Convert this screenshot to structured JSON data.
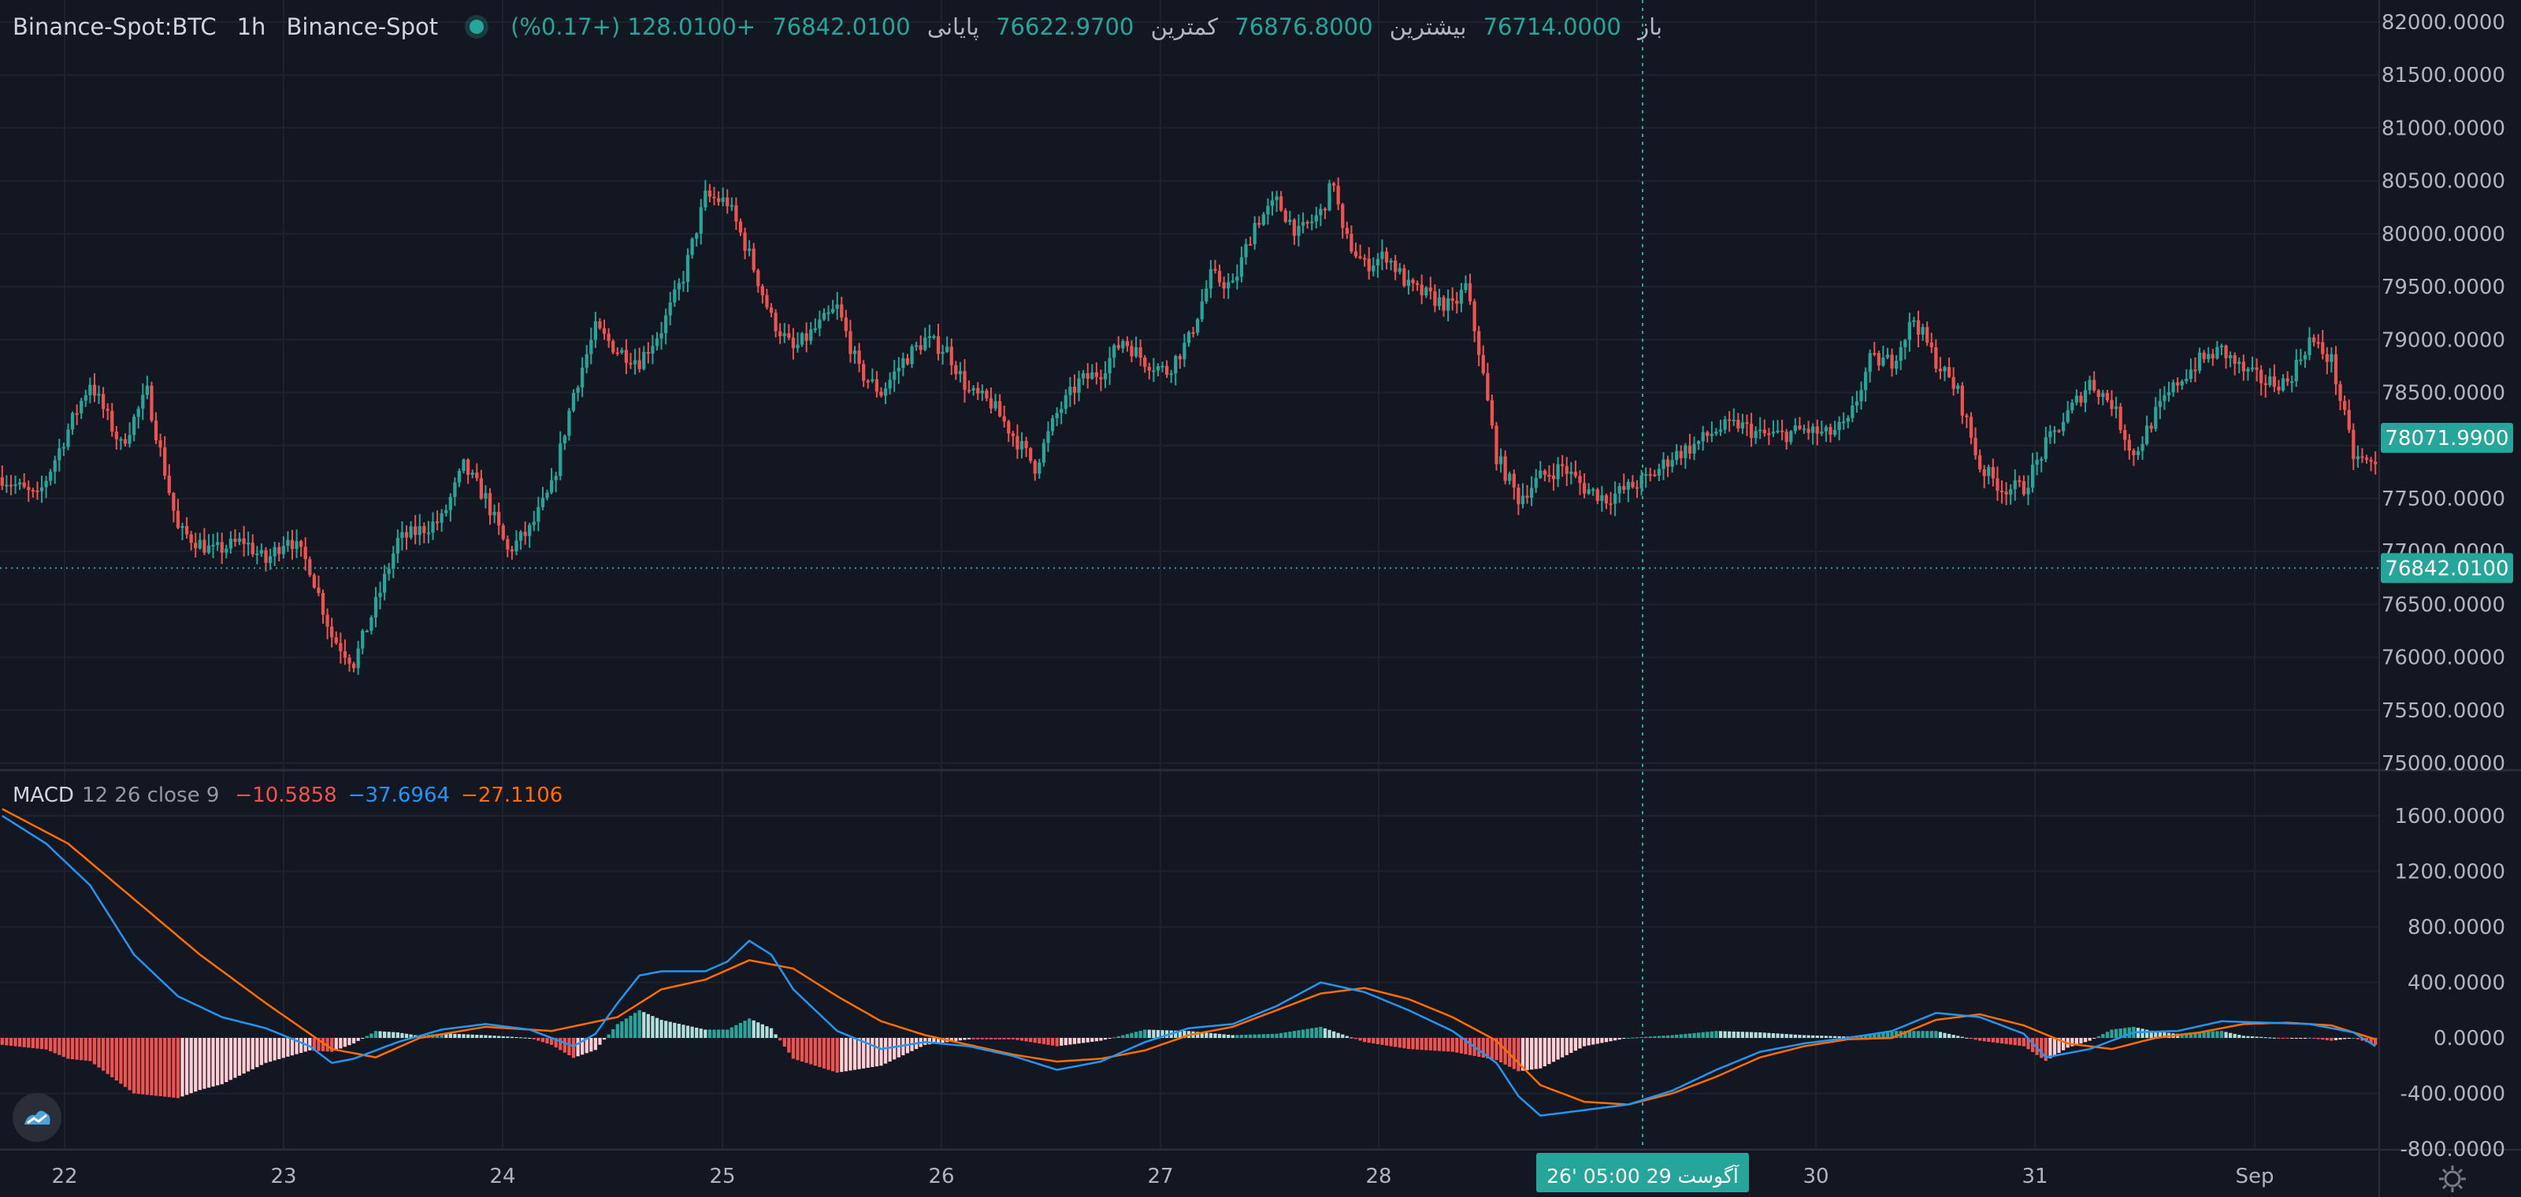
{
  "header": {
    "symbol": "Binance-Spot:BTC",
    "interval": "1h",
    "exchange": "Binance-Spot",
    "open_label": "باز",
    "open_value": "76714.0000",
    "high_label": "بیشترین",
    "high_value": "76876.8000",
    "low_label": "کمترین",
    "low_value": "76622.9700",
    "close_label": "پایانی",
    "close_value": "76842.0100",
    "change": "+128.0100 (+0.17%)"
  },
  "macd_legend": {
    "name": "MACD",
    "params": "12 26 close 9",
    "hist_value": "−10.5858",
    "macd_value": "−37.6964",
    "signal_value": "−27.1106"
  },
  "price_axis_labels": [
    "82000.0000",
    "81500.0000",
    "81000.0000",
    "80500.0000",
    "80000.0000",
    "79500.0000",
    "79000.0000",
    "78500.0000",
    "78000.0000",
    "77500.0000",
    "77000.0000",
    "76500.0000",
    "76000.0000",
    "75500.0000",
    "75000.0000"
  ],
  "macd_axis_labels": [
    "1600.0000",
    "1200.0000",
    "800.0000",
    "400.0000",
    "0.0000",
    "-400.0000",
    "-800.0000"
  ],
  "price_badges": {
    "crosshair": "78071.9900",
    "last": "76842.0100"
  },
  "time_axis_labels": [
    "22",
    "23",
    "24",
    "25",
    "26",
    "27",
    "28",
    "29",
    "30",
    "31",
    "Sep"
  ],
  "crosshair_time_label": "26' آگوست 29   05:00",
  "colors": {
    "background": "#131722",
    "up": "#26a69a",
    "down": "#ef5350",
    "macd": "#2196f3",
    "signal": "#ff6d00",
    "hist_pos_strong": "#26a69a",
    "hist_pos_weak": "#b2dfdb",
    "hist_neg_strong": "#ef5350",
    "hist_neg_weak": "#ffcdd2"
  },
  "chart_data": [
    {
      "type": "candlestick",
      "title": "Binance-Spot:BTC 1h",
      "y_range": [
        75000,
        82000
      ],
      "x_labels": [
        "22",
        "23",
        "24",
        "25",
        "26",
        "27",
        "28",
        "29",
        "30",
        "31",
        "Sep"
      ],
      "last_price": 76842.01,
      "crosshair_price": 78071.99,
      "close_path": [
        [
          0,
          77700
        ],
        [
          8,
          77500
        ],
        [
          15,
          78150
        ],
        [
          20,
          78600
        ],
        [
          27,
          78000
        ],
        [
          33,
          78500
        ],
        [
          40,
          77200
        ],
        [
          48,
          77000
        ],
        [
          55,
          77100
        ],
        [
          60,
          76900
        ],
        [
          65,
          77150
        ],
        [
          70,
          76850
        ],
        [
          75,
          76200
        ],
        [
          80,
          75950
        ],
        [
          85,
          76500
        ],
        [
          90,
          77100
        ],
        [
          95,
          77200
        ],
        [
          100,
          77300
        ],
        [
          105,
          77800
        ],
        [
          110,
          77500
        ],
        [
          115,
          77000
        ],
        [
          120,
          77200
        ],
        [
          125,
          77600
        ],
        [
          130,
          78500
        ],
        [
          135,
          79100
        ],
        [
          140,
          78900
        ],
        [
          145,
          78800
        ],
        [
          150,
          79100
        ],
        [
          155,
          79600
        ],
        [
          160,
          80350
        ],
        [
          165,
          80300
        ],
        [
          170,
          79800
        ],
        [
          175,
          79200
        ],
        [
          180,
          78900
        ],
        [
          185,
          79100
        ],
        [
          190,
          79300
        ],
        [
          195,
          78700
        ],
        [
          200,
          78500
        ],
        [
          205,
          78800
        ],
        [
          210,
          79000
        ],
        [
          215,
          78900
        ],
        [
          220,
          78500
        ],
        [
          225,
          78400
        ],
        [
          230,
          78100
        ],
        [
          235,
          77800
        ],
        [
          240,
          78300
        ],
        [
          245,
          78600
        ],
        [
          250,
          78700
        ],
        [
          255,
          79000
        ],
        [
          260,
          78800
        ],
        [
          265,
          78700
        ],
        [
          270,
          79000
        ],
        [
          275,
          79600
        ],
        [
          280,
          79500
        ],
        [
          285,
          80100
        ],
        [
          290,
          80300
        ],
        [
          295,
          80000
        ],
        [
          300,
          80200
        ],
        [
          303,
          80500
        ],
        [
          305,
          80000
        ],
        [
          310,
          79700
        ],
        [
          315,
          79800
        ],
        [
          320,
          79500
        ],
        [
          325,
          79400
        ],
        [
          330,
          79300
        ],
        [
          333,
          79500
        ],
        [
          336,
          78900
        ],
        [
          340,
          77900
        ],
        [
          345,
          77500
        ],
        [
          350,
          77700
        ],
        [
          355,
          77800
        ],
        [
          360,
          77600
        ],
        [
          365,
          77500
        ],
        [
          370,
          77600
        ],
        [
          375,
          77700
        ],
        [
          380,
          77900
        ],
        [
          385,
          78000
        ],
        [
          390,
          78150
        ],
        [
          395,
          78200
        ],
        [
          400,
          78100
        ],
        [
          405,
          78100
        ],
        [
          410,
          78150
        ],
        [
          415,
          78100
        ],
        [
          420,
          78200
        ],
        [
          425,
          78800
        ],
        [
          430,
          78800
        ],
        [
          435,
          79200
        ],
        [
          440,
          78800
        ],
        [
          445,
          78500
        ],
        [
          450,
          77800
        ],
        [
          455,
          77600
        ],
        [
          460,
          77600
        ],
        [
          465,
          78000
        ],
        [
          470,
          78300
        ],
        [
          475,
          78600
        ],
        [
          480,
          78400
        ],
        [
          485,
          77900
        ],
        [
          490,
          78300
        ],
        [
          495,
          78600
        ],
        [
          500,
          78800
        ],
        [
          505,
          78900
        ],
        [
          510,
          78700
        ],
        [
          515,
          78600
        ],
        [
          520,
          78600
        ],
        [
          525,
          79000
        ],
        [
          530,
          78800
        ],
        [
          535,
          77900
        ],
        [
          540,
          77800
        ]
      ]
    },
    {
      "type": "macd",
      "params": "12 26 close 9",
      "y_range": [
        -800,
        1800
      ],
      "macd_path": [
        [
          0,
          1600
        ],
        [
          10,
          1400
        ],
        [
          20,
          1100
        ],
        [
          30,
          600
        ],
        [
          40,
          300
        ],
        [
          50,
          150
        ],
        [
          60,
          70
        ],
        [
          70,
          -60
        ],
        [
          75,
          -180
        ],
        [
          80,
          -150
        ],
        [
          90,
          -30
        ],
        [
          100,
          60
        ],
        [
          110,
          100
        ],
        [
          120,
          60
        ],
        [
          130,
          -60
        ],
        [
          135,
          30
        ],
        [
          140,
          250
        ],
        [
          145,
          450
        ],
        [
          150,
          480
        ],
        [
          160,
          480
        ],
        [
          165,
          550
        ],
        [
          170,
          700
        ],
        [
          175,
          600
        ],
        [
          180,
          350
        ],
        [
          190,
          50
        ],
        [
          200,
          -80
        ],
        [
          210,
          -30
        ],
        [
          220,
          -60
        ],
        [
          230,
          -130
        ],
        [
          240,
          -230
        ],
        [
          250,
          -170
        ],
        [
          260,
          -30
        ],
        [
          270,
          70
        ],
        [
          280,
          100
        ],
        [
          290,
          230
        ],
        [
          300,
          400
        ],
        [
          310,
          330
        ],
        [
          320,
          200
        ],
        [
          330,
          50
        ],
        [
          340,
          -180
        ],
        [
          345,
          -420
        ],
        [
          350,
          -560
        ],
        [
          360,
          -520
        ],
        [
          370,
          -480
        ],
        [
          380,
          -380
        ],
        [
          390,
          -230
        ],
        [
          400,
          -100
        ],
        [
          410,
          -40
        ],
        [
          420,
          0
        ],
        [
          430,
          50
        ],
        [
          440,
          180
        ],
        [
          450,
          150
        ],
        [
          460,
          30
        ],
        [
          465,
          -140
        ],
        [
          475,
          -80
        ],
        [
          485,
          40
        ],
        [
          495,
          50
        ],
        [
          505,
          120
        ],
        [
          515,
          110
        ],
        [
          525,
          100
        ],
        [
          535,
          40
        ],
        [
          540,
          -60
        ]
      ],
      "signal_path": [
        [
          0,
          1650
        ],
        [
          15,
          1400
        ],
        [
          30,
          1000
        ],
        [
          45,
          600
        ],
        [
          60,
          250
        ],
        [
          75,
          -80
        ],
        [
          85,
          -140
        ],
        [
          95,
          0
        ],
        [
          110,
          80
        ],
        [
          125,
          50
        ],
        [
          140,
          150
        ],
        [
          150,
          350
        ],
        [
          160,
          420
        ],
        [
          170,
          560
        ],
        [
          180,
          500
        ],
        [
          190,
          300
        ],
        [
          200,
          120
        ],
        [
          210,
          20
        ],
        [
          220,
          -50
        ],
        [
          230,
          -120
        ],
        [
          240,
          -170
        ],
        [
          250,
          -150
        ],
        [
          260,
          -90
        ],
        [
          270,
          20
        ],
        [
          280,
          80
        ],
        [
          290,
          200
        ],
        [
          300,
          320
        ],
        [
          310,
          360
        ],
        [
          320,
          280
        ],
        [
          330,
          150
        ],
        [
          340,
          -20
        ],
        [
          350,
          -340
        ],
        [
          360,
          -460
        ],
        [
          370,
          -480
        ],
        [
          380,
          -400
        ],
        [
          390,
          -280
        ],
        [
          400,
          -140
        ],
        [
          410,
          -60
        ],
        [
          420,
          -10
        ],
        [
          430,
          0
        ],
        [
          440,
          130
        ],
        [
          450,
          170
        ],
        [
          460,
          90
        ],
        [
          470,
          -40
        ],
        [
          480,
          -80
        ],
        [
          490,
          0
        ],
        [
          500,
          40
        ],
        [
          510,
          100
        ],
        [
          520,
          110
        ],
        [
          530,
          90
        ],
        [
          540,
          -10
        ]
      ]
    }
  ]
}
